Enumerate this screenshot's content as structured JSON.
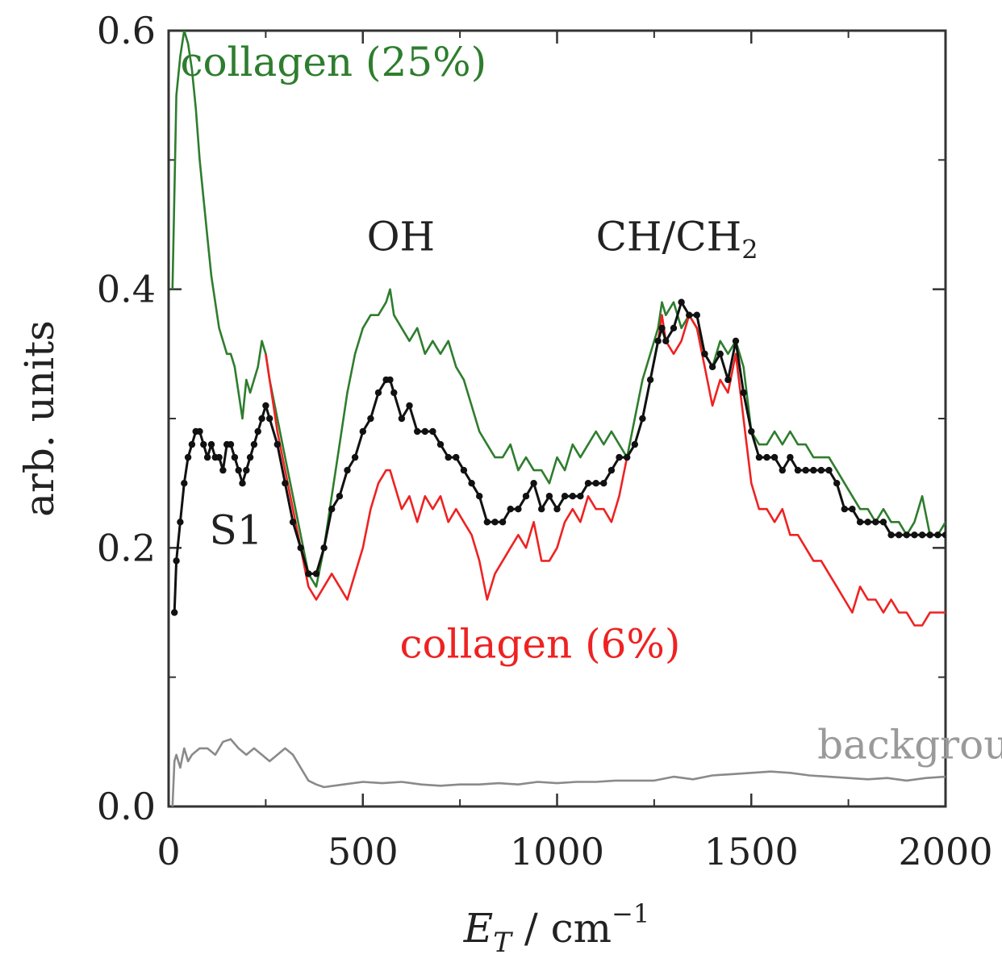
{
  "chart_data": {
    "type": "line",
    "title": "",
    "xlabel": "E_T / cm^-1",
    "xlabel_main": "E",
    "xlabel_sub": "T",
    "xlabel_unit": " / cm",
    "xlabel_exp": "−1",
    "ylabel": "arb. units",
    "xlim": [
      0,
      2000
    ],
    "ylim": [
      0,
      0.6
    ],
    "xticks": [
      0,
      500,
      1000,
      1500,
      2000
    ],
    "xtick_labels": [
      "0",
      "500",
      "1000",
      "1500",
      "2000"
    ],
    "yticks": [
      0.0,
      0.2,
      0.4,
      0.6
    ],
    "ytick_labels": [
      "0.0",
      "0.2",
      "0.4",
      "0.6"
    ],
    "grid": false,
    "series": [
      {
        "name": "collagen (25%)",
        "color": "#2e7d2e",
        "markers": false,
        "x": [
          10,
          20,
          30,
          40,
          50,
          60,
          70,
          80,
          90,
          100,
          110,
          120,
          130,
          140,
          150,
          160,
          170,
          180,
          190,
          200,
          210,
          220,
          230,
          240,
          250,
          260,
          280,
          300,
          320,
          340,
          360,
          380,
          400,
          420,
          440,
          460,
          480,
          500,
          520,
          540,
          560,
          570,
          580,
          600,
          620,
          640,
          660,
          680,
          700,
          720,
          740,
          760,
          780,
          800,
          820,
          840,
          860,
          880,
          900,
          920,
          940,
          960,
          980,
          1000,
          1020,
          1040,
          1060,
          1080,
          1100,
          1120,
          1140,
          1160,
          1180,
          1200,
          1220,
          1240,
          1260,
          1270,
          1280,
          1300,
          1320,
          1340,
          1360,
          1380,
          1400,
          1420,
          1440,
          1460,
          1480,
          1500,
          1520,
          1540,
          1560,
          1580,
          1600,
          1620,
          1640,
          1660,
          1680,
          1700,
          1720,
          1740,
          1760,
          1780,
          1800,
          1820,
          1840,
          1860,
          1880,
          1900,
          1920,
          1940,
          1960,
          1980,
          2000
        ],
        "y": [
          0.4,
          0.55,
          0.58,
          0.6,
          0.59,
          0.57,
          0.54,
          0.5,
          0.47,
          0.44,
          0.41,
          0.39,
          0.37,
          0.36,
          0.35,
          0.35,
          0.34,
          0.32,
          0.3,
          0.33,
          0.32,
          0.33,
          0.34,
          0.36,
          0.35,
          0.33,
          0.3,
          0.27,
          0.24,
          0.21,
          0.18,
          0.17,
          0.2,
          0.24,
          0.28,
          0.32,
          0.35,
          0.37,
          0.38,
          0.38,
          0.39,
          0.4,
          0.38,
          0.37,
          0.36,
          0.37,
          0.35,
          0.36,
          0.35,
          0.36,
          0.34,
          0.33,
          0.31,
          0.29,
          0.28,
          0.27,
          0.27,
          0.28,
          0.26,
          0.27,
          0.26,
          0.26,
          0.25,
          0.27,
          0.26,
          0.28,
          0.27,
          0.28,
          0.29,
          0.28,
          0.29,
          0.28,
          0.27,
          0.3,
          0.33,
          0.35,
          0.37,
          0.39,
          0.38,
          0.39,
          0.37,
          0.38,
          0.37,
          0.35,
          0.34,
          0.36,
          0.35,
          0.36,
          0.34,
          0.29,
          0.28,
          0.28,
          0.29,
          0.28,
          0.29,
          0.28,
          0.28,
          0.27,
          0.27,
          0.27,
          0.26,
          0.25,
          0.24,
          0.23,
          0.23,
          0.22,
          0.23,
          0.22,
          0.22,
          0.21,
          0.22,
          0.24,
          0.21,
          0.21,
          0.22
        ]
      },
      {
        "name": "S1",
        "color": "#111111",
        "markers": true,
        "x": [
          15,
          20,
          30,
          40,
          50,
          60,
          70,
          80,
          90,
          100,
          110,
          120,
          130,
          140,
          150,
          160,
          170,
          180,
          190,
          200,
          210,
          220,
          230,
          240,
          250,
          260,
          280,
          300,
          320,
          340,
          360,
          380,
          400,
          420,
          440,
          460,
          480,
          500,
          520,
          540,
          560,
          570,
          580,
          600,
          620,
          640,
          660,
          680,
          700,
          720,
          740,
          760,
          780,
          800,
          820,
          840,
          860,
          880,
          900,
          920,
          940,
          960,
          980,
          1000,
          1020,
          1040,
          1060,
          1080,
          1100,
          1120,
          1140,
          1160,
          1180,
          1200,
          1220,
          1240,
          1260,
          1270,
          1280,
          1300,
          1320,
          1340,
          1360,
          1380,
          1400,
          1420,
          1440,
          1460,
          1480,
          1500,
          1520,
          1540,
          1560,
          1580,
          1600,
          1620,
          1640,
          1660,
          1680,
          1700,
          1720,
          1740,
          1760,
          1780,
          1800,
          1820,
          1840,
          1860,
          1880,
          1900,
          1920,
          1940,
          1960,
          1980,
          2000
        ],
        "y": [
          0.15,
          0.19,
          0.22,
          0.25,
          0.27,
          0.28,
          0.29,
          0.29,
          0.28,
          0.27,
          0.28,
          0.27,
          0.27,
          0.26,
          0.28,
          0.28,
          0.27,
          0.26,
          0.25,
          0.26,
          0.27,
          0.28,
          0.29,
          0.3,
          0.31,
          0.3,
          0.28,
          0.25,
          0.22,
          0.2,
          0.18,
          0.18,
          0.2,
          0.23,
          0.24,
          0.26,
          0.27,
          0.29,
          0.3,
          0.32,
          0.33,
          0.33,
          0.32,
          0.3,
          0.31,
          0.29,
          0.29,
          0.29,
          0.28,
          0.27,
          0.27,
          0.26,
          0.25,
          0.24,
          0.22,
          0.22,
          0.22,
          0.23,
          0.23,
          0.24,
          0.25,
          0.23,
          0.24,
          0.23,
          0.24,
          0.24,
          0.24,
          0.25,
          0.25,
          0.25,
          0.26,
          0.27,
          0.27,
          0.28,
          0.3,
          0.33,
          0.36,
          0.37,
          0.36,
          0.37,
          0.39,
          0.38,
          0.38,
          0.35,
          0.34,
          0.35,
          0.33,
          0.36,
          0.32,
          0.29,
          0.27,
          0.27,
          0.27,
          0.26,
          0.27,
          0.26,
          0.26,
          0.26,
          0.26,
          0.26,
          0.25,
          0.23,
          0.23,
          0.22,
          0.22,
          0.22,
          0.22,
          0.21,
          0.21,
          0.21,
          0.21,
          0.21,
          0.21,
          0.21,
          0.21
        ]
      },
      {
        "name": "collagen (6%)",
        "color": "#ee2222",
        "markers": false,
        "x": [
          250,
          260,
          280,
          300,
          320,
          340,
          360,
          380,
          400,
          420,
          440,
          460,
          480,
          500,
          520,
          540,
          560,
          570,
          580,
          600,
          620,
          640,
          660,
          680,
          700,
          720,
          740,
          760,
          780,
          800,
          820,
          840,
          860,
          880,
          900,
          920,
          940,
          960,
          980,
          1000,
          1020,
          1040,
          1060,
          1080,
          1100,
          1120,
          1140,
          1160,
          1180,
          1200,
          1220,
          1240,
          1260,
          1270,
          1280,
          1300,
          1320,
          1340,
          1360,
          1380,
          1400,
          1420,
          1440,
          1460,
          1480,
          1500,
          1520,
          1540,
          1560,
          1580,
          1600,
          1620,
          1640,
          1660,
          1680,
          1700,
          1720,
          1740,
          1760,
          1780,
          1800,
          1820,
          1840,
          1860,
          1880,
          1900,
          1920,
          1940,
          1960,
          1980,
          2000
        ],
        "y": [
          0.35,
          0.33,
          0.29,
          0.26,
          0.23,
          0.2,
          0.17,
          0.16,
          0.17,
          0.18,
          0.17,
          0.16,
          0.18,
          0.2,
          0.23,
          0.25,
          0.26,
          0.26,
          0.25,
          0.23,
          0.24,
          0.22,
          0.24,
          0.23,
          0.24,
          0.22,
          0.23,
          0.22,
          0.21,
          0.19,
          0.16,
          0.18,
          0.19,
          0.2,
          0.21,
          0.2,
          0.22,
          0.19,
          0.19,
          0.2,
          0.22,
          0.23,
          0.22,
          0.24,
          0.23,
          0.23,
          0.22,
          0.24,
          0.27,
          0.28,
          0.3,
          0.33,
          0.36,
          0.38,
          0.36,
          0.35,
          0.36,
          0.38,
          0.37,
          0.34,
          0.31,
          0.33,
          0.32,
          0.35,
          0.3,
          0.25,
          0.23,
          0.23,
          0.22,
          0.23,
          0.21,
          0.21,
          0.2,
          0.19,
          0.19,
          0.18,
          0.17,
          0.16,
          0.15,
          0.17,
          0.16,
          0.16,
          0.15,
          0.16,
          0.15,
          0.15,
          0.14,
          0.14,
          0.15,
          0.15,
          0.15
        ]
      },
      {
        "name": "background",
        "color": "#8a8a8a",
        "markers": false,
        "x": [
          10,
          15,
          20,
          30,
          40,
          50,
          60,
          80,
          100,
          120,
          140,
          160,
          180,
          200,
          220,
          240,
          260,
          280,
          300,
          320,
          340,
          360,
          380,
          400,
          450,
          500,
          550,
          600,
          650,
          700,
          750,
          800,
          850,
          900,
          950,
          1000,
          1050,
          1100,
          1150,
          1200,
          1250,
          1300,
          1350,
          1400,
          1450,
          1500,
          1550,
          1600,
          1650,
          1700,
          1750,
          1800,
          1850,
          1900,
          1950,
          2000
        ],
        "y": [
          0.0,
          0.035,
          0.04,
          0.03,
          0.045,
          0.035,
          0.04,
          0.045,
          0.045,
          0.04,
          0.05,
          0.052,
          0.045,
          0.04,
          0.045,
          0.04,
          0.035,
          0.04,
          0.045,
          0.04,
          0.03,
          0.02,
          0.017,
          0.015,
          0.017,
          0.019,
          0.018,
          0.019,
          0.017,
          0.016,
          0.017,
          0.017,
          0.018,
          0.017,
          0.019,
          0.018,
          0.019,
          0.019,
          0.02,
          0.02,
          0.02,
          0.023,
          0.021,
          0.024,
          0.025,
          0.026,
          0.027,
          0.026,
          0.024,
          0.023,
          0.022,
          0.021,
          0.022,
          0.02,
          0.022,
          0.023
        ]
      }
    ],
    "annotations": [
      {
        "text": "collagen (25%)",
        "x": 30,
        "y": 0.565,
        "color": "#2e7d2e"
      },
      {
        "text": "OH",
        "x": 510,
        "y": 0.43,
        "color": "#222222"
      },
      {
        "text": "CH/CH",
        "sub": "2",
        "x": 1100,
        "y": 0.43,
        "color": "#222222"
      },
      {
        "text": "S1",
        "x": 105,
        "y": 0.203,
        "color": "#222222"
      },
      {
        "text": "collagen (6%)",
        "x": 595,
        "y": 0.115,
        "color": "#ee2222"
      },
      {
        "text": "background",
        "x": 1670,
        "y": 0.037,
        "color": "#9a9a9a"
      }
    ]
  }
}
